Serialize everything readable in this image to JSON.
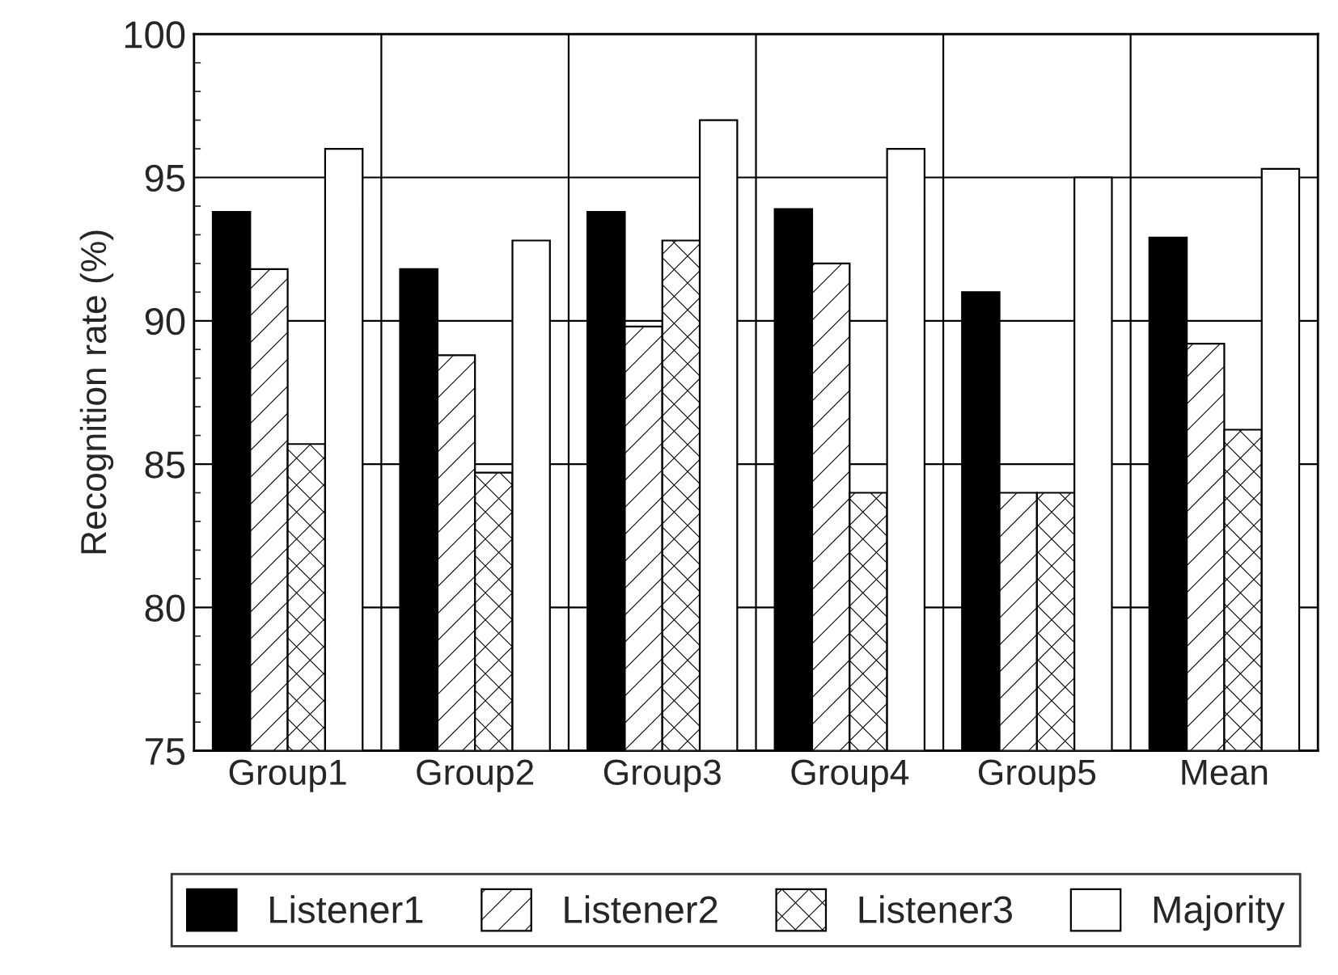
{
  "chart_data": {
    "type": "bar",
    "ylabel": "Recognition rate (%)",
    "categories": [
      "Group1",
      "Group2",
      "Group3",
      "Group4",
      "Group5",
      "Mean"
    ],
    "series": [
      {
        "name": "Listener1",
        "color": "#000000",
        "values": [
          93.8,
          91.8,
          93.8,
          93.9,
          91.0,
          92.9
        ]
      },
      {
        "name": "Listener2",
        "color": "#ffffff",
        "values": [
          91.8,
          88.8,
          89.8,
          92.0,
          84.0,
          89.2
        ]
      },
      {
        "name": "Listener3",
        "color": "#ffffff",
        "values": [
          85.7,
          84.7,
          92.8,
          84.0,
          84.0,
          86.2
        ]
      },
      {
        "name": "Majority",
        "color": "#ffffff",
        "values": [
          96.0,
          92.8,
          97.0,
          96.0,
          95.0,
          95.3
        ]
      }
    ],
    "ylim": [
      75,
      100
    ],
    "yticks": [
      75,
      80,
      85,
      90,
      95,
      100
    ],
    "grid": true,
    "legend": "bottom"
  }
}
